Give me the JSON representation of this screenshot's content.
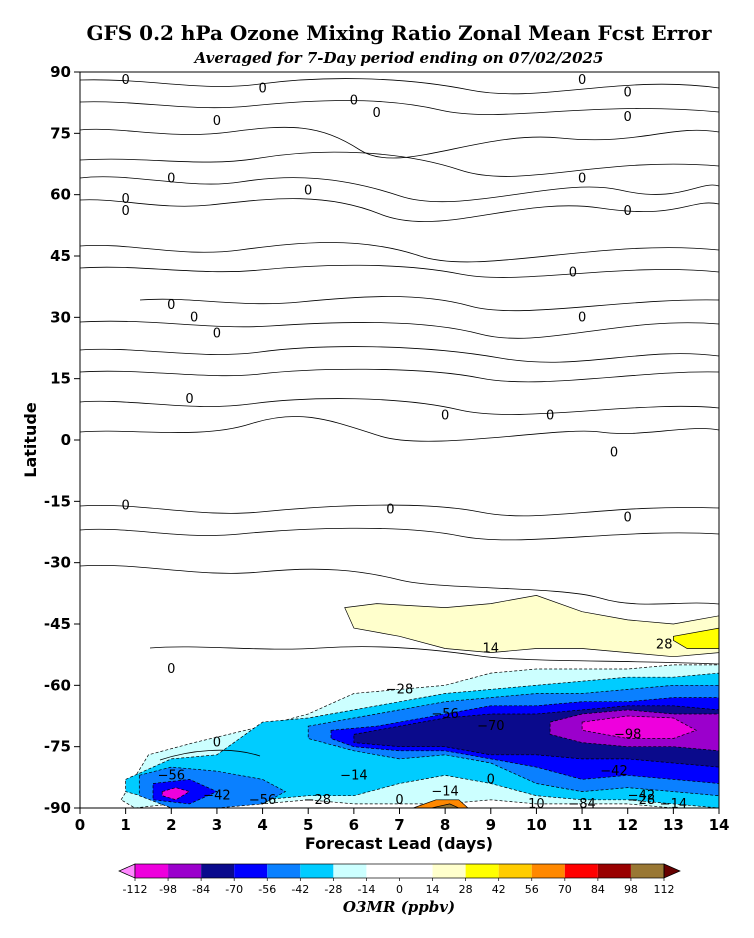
{
  "chart_data": {
    "type": "heatmap",
    "title": "GFS 0.2 hPa Ozone Mixing Ratio Zonal Mean Fcst Error",
    "subtitle": "Averaged for 7-Day period ending on 07/02/2025",
    "xlabel": "Forecast Lead (days)",
    "ylabel": "Latitude",
    "xlim": [
      0,
      14
    ],
    "ylim": [
      -90,
      90
    ],
    "x_ticks": [
      0,
      1,
      2,
      3,
      4,
      5,
      6,
      7,
      8,
      9,
      10,
      11,
      12,
      13,
      14
    ],
    "y_ticks": [
      90,
      75,
      60,
      45,
      30,
      15,
      0,
      -15,
      -30,
      -45,
      -60,
      -75,
      -90
    ],
    "colorbar": {
      "label": "O3MR (ppbv)",
      "levels": [
        -112,
        -98,
        -84,
        -70,
        -56,
        -42,
        -28,
        -14,
        0,
        14,
        28,
        42,
        56,
        70,
        84,
        98,
        112
      ],
      "colors": [
        "#ee00dd",
        "#9b00cc",
        "#0a0a8c",
        "#0000ff",
        "#0a80ff",
        "#00ccff",
        "#ccffff",
        "#ffffff",
        "#ffffff",
        "#ffffcc",
        "#ffff00",
        "#ffcc00",
        "#ff8800",
        "#ff0000",
        "#990000",
        "#997733"
      ],
      "under_color": "#ff88ff",
      "over_color": "#660000"
    },
    "regions": [
      {
        "level": 14,
        "x": [
          5.8,
          6.5,
          8,
          9,
          10,
          11,
          12,
          13,
          14,
          14,
          13,
          12,
          11,
          10,
          9,
          8,
          7,
          6,
          5.8
        ],
        "y": [
          -41,
          -40,
          -41,
          -40,
          -38,
          -42,
          -44,
          -45,
          -43,
          -52,
          -53,
          -52,
          -51,
          -51,
          -52,
          -51,
          -48,
          -46,
          -41
        ]
      },
      {
        "level": 28,
        "x": [
          13,
          14,
          14,
          13.3,
          13
        ],
        "y": [
          -48,
          -46,
          -51,
          -51,
          -49
        ]
      },
      {
        "level": -14,
        "x": [
          0.9,
          1.5,
          2.5,
          4,
          5,
          6,
          7,
          8,
          9,
          10,
          11,
          12,
          13,
          14,
          14,
          13,
          12,
          10,
          9,
          8,
          7,
          6,
          5,
          4,
          3,
          2,
          1.2,
          0.9
        ],
        "y": [
          -88,
          -77,
          -74,
          -70,
          -67,
          -62,
          -61,
          -60,
          -57,
          -56,
          -56,
          -56,
          -55,
          -55,
          -90,
          -90,
          -89,
          -89,
          -88,
          -89,
          -89,
          -89,
          -88,
          -89,
          -89,
          -89,
          -90,
          -88
        ]
      },
      {
        "level": -28,
        "x": [
          1,
          2,
          3,
          4,
          5,
          6,
          7,
          8,
          9,
          10,
          11,
          12,
          13,
          14,
          14,
          13,
          12,
          11,
          10,
          9,
          8,
          7,
          6,
          5,
          4,
          3,
          2,
          1
        ],
        "y": [
          -83,
          -78,
          -77,
          -69,
          -68,
          -66,
          -64,
          -62,
          -61,
          -60,
          -59,
          -58,
          -58,
          -57,
          -90,
          -89,
          -88,
          -88,
          -87,
          -84,
          -82,
          -84,
          -87,
          -87,
          -88,
          -89,
          -89,
          -86
        ]
      },
      {
        "level": -42,
        "x": [
          5,
          6,
          7,
          8,
          9,
          10,
          11,
          12,
          13,
          14,
          14,
          13,
          12,
          11,
          10,
          9,
          8,
          7,
          6,
          5
        ],
        "y": [
          -70,
          -68,
          -66,
          -64,
          -63,
          -62,
          -62,
          -61,
          -60,
          -60,
          -87,
          -86,
          -85,
          -86,
          -84,
          -79,
          -77,
          -78,
          -76,
          -73
        ]
      },
      {
        "level": -42,
        "x": [
          1.3,
          2,
          3,
          4,
          4.5,
          4,
          3,
          2,
          1.3
        ],
        "y": [
          -82,
          -80,
          -81,
          -83,
          -86,
          -89,
          -90,
          -90,
          -87
        ]
      },
      {
        "level": -56,
        "x": [
          5.5,
          6.5,
          8,
          9,
          10,
          11,
          12,
          13,
          14,
          14,
          13,
          12,
          11,
          10,
          9,
          8,
          7,
          6,
          5.5
        ],
        "y": [
          -71,
          -70,
          -67,
          -65,
          -65,
          -64,
          -64,
          -63,
          -63,
          -84,
          -83,
          -82,
          -83,
          -80,
          -78,
          -76,
          -76,
          -75,
          -73
        ]
      },
      {
        "level": -56,
        "x": [
          1.6,
          2.4,
          3,
          2.4,
          1.6
        ],
        "y": [
          -84,
          -83,
          -86,
          -89,
          -88
        ]
      },
      {
        "level": -70,
        "x": [
          6,
          7,
          8,
          9,
          10,
          11,
          12,
          13,
          14,
          14,
          13,
          12,
          11,
          10,
          9,
          8,
          7,
          6
        ],
        "y": [
          -72,
          -70,
          -68,
          -67,
          -67,
          -66,
          -65,
          -65,
          -66,
          -80,
          -79,
          -78,
          -78,
          -77,
          -77,
          -75,
          -75,
          -74
        ]
      },
      {
        "level": -84,
        "x": [
          10.3,
          11,
          12,
          13,
          14,
          14,
          13,
          12,
          11,
          10.3
        ],
        "y": [
          -69,
          -67,
          -66,
          -67,
          -67,
          -76,
          -75,
          -75,
          -74,
          -72
        ]
      },
      {
        "level": -98,
        "x": [
          11,
          12,
          13,
          13.5,
          13,
          12,
          11
        ],
        "y": [
          -69,
          -67.5,
          -68,
          -71,
          -73,
          -73,
          -71
        ]
      },
      {
        "level": -112,
        "x": [
          1.8,
          2.1,
          2.4,
          2.1,
          1.8
        ],
        "y": [
          -86,
          -85,
          -86,
          -88,
          -87
        ]
      },
      {
        "level": 56,
        "x": [
          7.3,
          7.8,
          8.3,
          8.5,
          7.3
        ],
        "y": [
          -90,
          -88,
          -88,
          -90,
          -90
        ]
      },
      {
        "level": 98,
        "x": [
          7.7,
          8.1,
          8.3,
          7.7
        ],
        "y": [
          -90,
          -89,
          -90,
          -90
        ]
      }
    ],
    "contour_labels": [
      {
        "text": "0",
        "x": 1,
        "y": 88
      },
      {
        "text": "0",
        "x": 4,
        "y": 86
      },
      {
        "text": "0",
        "x": 6,
        "y": 83
      },
      {
        "text": "0",
        "x": 6.5,
        "y": 80
      },
      {
        "text": "0",
        "x": 3,
        "y": 78
      },
      {
        "text": "0",
        "x": 11,
        "y": 88
      },
      {
        "text": "0",
        "x": 12,
        "y": 85
      },
      {
        "text": "0",
        "x": 12,
        "y": 79
      },
      {
        "text": "0",
        "x": 2,
        "y": 64
      },
      {
        "text": "0",
        "x": 5,
        "y": 61
      },
      {
        "text": "0",
        "x": 1,
        "y": 59
      },
      {
        "text": "0",
        "x": 1,
        "y": 56
      },
      {
        "text": "0",
        "x": 11,
        "y": 64
      },
      {
        "text": "0",
        "x": 12,
        "y": 56
      },
      {
        "text": "0",
        "x": 2,
        "y": 33
      },
      {
        "text": "0",
        "x": 2.5,
        "y": 30
      },
      {
        "text": "0",
        "x": 3,
        "y": 26
      },
      {
        "text": "0",
        "x": 10.8,
        "y": 41
      },
      {
        "text": "0",
        "x": 11,
        "y": 30
      },
      {
        "text": "0",
        "x": 2.4,
        "y": 10
      },
      {
        "text": "0",
        "x": 8,
        "y": 6
      },
      {
        "text": "0",
        "x": 10.3,
        "y": 6
      },
      {
        "text": "0",
        "x": 11.7,
        "y": -3
      },
      {
        "text": "0",
        "x": 1,
        "y": -16
      },
      {
        "text": "0",
        "x": 6.8,
        "y": -17
      },
      {
        "text": "0",
        "x": 12,
        "y": -19
      },
      {
        "text": "0",
        "x": 2,
        "y": -56
      },
      {
        "text": "0",
        "x": 3,
        "y": -74
      },
      {
        "text": "14",
        "x": 9,
        "y": -51
      },
      {
        "text": "28",
        "x": 12.8,
        "y": -50
      },
      {
        "text": "−28",
        "x": 7,
        "y": -61
      },
      {
        "text": "−56",
        "x": 8,
        "y": -67
      },
      {
        "text": "−70",
        "x": 9,
        "y": -70
      },
      {
        "text": "−56",
        "x": 2,
        "y": -82
      },
      {
        "text": "−14",
        "x": 6,
        "y": -82
      },
      {
        "text": "−42",
        "x": 3,
        "y": -87
      },
      {
        "text": "−56",
        "x": 4,
        "y": -88
      },
      {
        "text": "−28",
        "x": 5.2,
        "y": -88
      },
      {
        "text": "−42",
        "x": 11.7,
        "y": -81
      },
      {
        "text": "−98",
        "x": 12,
        "y": -72
      },
      {
        "text": "−42",
        "x": 12.3,
        "y": -87
      },
      {
        "text": "−28",
        "x": 12.3,
        "y": -88
      },
      {
        "text": "−14",
        "x": 13,
        "y": -89
      },
      {
        "text": "−14",
        "x": 8,
        "y": -86
      },
      {
        "text": "−84",
        "x": 11,
        "y": -89
      },
      {
        "text": "0",
        "x": 9,
        "y": -83
      },
      {
        "text": "0",
        "x": 7,
        "y": -88
      },
      {
        "text": "10",
        "x": 10,
        "y": -89
      }
    ]
  }
}
